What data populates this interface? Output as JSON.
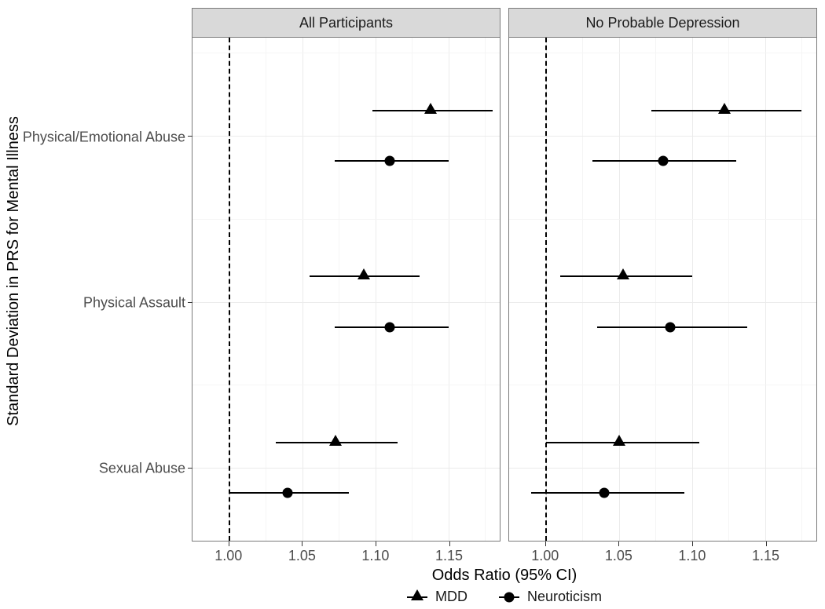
{
  "chart": {
    "type": "forest-plot",
    "y_axis_title": "Standard Deviation in PRS for Mental Illness",
    "x_axis_title": "Odds Ratio (95% CI)",
    "background_color": "#ffffff",
    "panel_border_color": "#7a7a7a",
    "strip_background": "#d9d9d9",
    "grid_major_color": "#ebebeb",
    "grid_minor_color": "#f5f5f5",
    "tick_label_color": "#4d4d4d",
    "axis_title_fontsize": 20,
    "tick_label_fontsize": 18,
    "strip_fontsize": 18,
    "marker_color": "#000000",
    "ci_line_color": "#000000",
    "ref_line_x": 1.0,
    "ref_line_style": "dashed",
    "xlim": [
      0.975,
      1.185
    ],
    "x_ticks": [
      1.0,
      1.05,
      1.1,
      1.15
    ],
    "x_tick_labels": [
      "1.00",
      "1.05",
      "1.10",
      "1.15"
    ],
    "x_minor_ticks": [
      1.025,
      1.075,
      1.125,
      1.175
    ],
    "y_categories": [
      "Physical/Emotional Abuse",
      "Physical Assault",
      "Sexual Abuse"
    ],
    "y_major_positions": [
      0.195,
      0.525,
      0.855
    ],
    "y_minor_positions": [
      0.03,
      0.36,
      0.69
    ],
    "series_offset": 0.05,
    "panels": [
      {
        "label": "All Participants",
        "points": [
          {
            "category": 0,
            "series": "MDD",
            "or": 1.138,
            "lo": 1.098,
            "hi": 1.18
          },
          {
            "category": 0,
            "series": "Neuroticism",
            "or": 1.11,
            "lo": 1.072,
            "hi": 1.15
          },
          {
            "category": 1,
            "series": "MDD",
            "or": 1.092,
            "lo": 1.055,
            "hi": 1.13
          },
          {
            "category": 1,
            "series": "Neuroticism",
            "or": 1.11,
            "lo": 1.072,
            "hi": 1.15
          },
          {
            "category": 2,
            "series": "MDD",
            "or": 1.073,
            "lo": 1.032,
            "hi": 1.115
          },
          {
            "category": 2,
            "series": "Neuroticism",
            "or": 1.04,
            "lo": 1.0,
            "hi": 1.082
          }
        ]
      },
      {
        "label": "No Probable Depression",
        "points": [
          {
            "category": 0,
            "series": "MDD",
            "or": 1.122,
            "lo": 1.072,
            "hi": 1.175
          },
          {
            "category": 0,
            "series": "Neuroticism",
            "or": 1.08,
            "lo": 1.032,
            "hi": 1.13
          },
          {
            "category": 1,
            "series": "MDD",
            "or": 1.053,
            "lo": 1.01,
            "hi": 1.1
          },
          {
            "category": 1,
            "series": "Neuroticism",
            "or": 1.085,
            "lo": 1.035,
            "hi": 1.138
          },
          {
            "category": 2,
            "series": "MDD",
            "or": 1.05,
            "lo": 1.0,
            "hi": 1.105
          },
          {
            "category": 2,
            "series": "Neuroticism",
            "or": 1.04,
            "lo": 0.99,
            "hi": 1.095
          }
        ]
      }
    ],
    "legend": [
      {
        "label": "MDD",
        "shape": "triangle"
      },
      {
        "label": "Neuroticism",
        "shape": "circle"
      }
    ]
  }
}
